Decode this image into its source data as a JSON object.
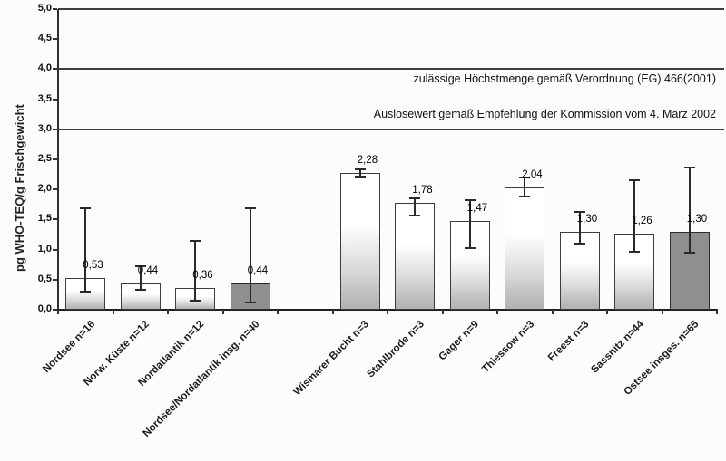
{
  "chart_data": {
    "type": "bar",
    "title": "",
    "xlabel": "",
    "ylabel": "pg WHO-TEQ/g Frischgewicht",
    "ylim": [
      0,
      5
    ],
    "ytick_step": 0.5,
    "ytick_labels": [
      "0,0",
      "0,5",
      "1,0",
      "1,5",
      "2,0",
      "2,5",
      "3,0",
      "3,5",
      "4,0",
      "4,5",
      "5,0"
    ],
    "grid": "horizontal reference lines at 3.0, 4.0 and 5.0 only; legend none",
    "total_slots": 12,
    "empty_slot": 4,
    "reference_lines": [
      {
        "value": 5.0,
        "label": ""
      },
      {
        "value": 4.0,
        "label": "zulässige Höchstmenge gemäß Verordnung (EG) 466(2001)"
      },
      {
        "value": 3.0,
        "label": "Auslösewert gemäß Empfehlung der Kommission vom 4. März 2002"
      }
    ],
    "bars": [
      {
        "slot": 0,
        "category": "Nordsee n=16",
        "value": 0.53,
        "label": "0,53",
        "err_low": 0.3,
        "err_high": 1.68,
        "dark": false
      },
      {
        "slot": 1,
        "category": "Norw. Küste n=12",
        "value": 0.44,
        "label": "0,44",
        "err_low": 0.33,
        "err_high": 0.72,
        "dark": false
      },
      {
        "slot": 2,
        "category": "Nordatlantik n=12",
        "value": 0.36,
        "label": "0,36",
        "err_low": 0.15,
        "err_high": 1.15,
        "dark": false
      },
      {
        "slot": 3,
        "category": "Nordsee/Nordatlantik insg. n=40",
        "value": 0.44,
        "label": "0,44",
        "err_low": 0.12,
        "err_high": 1.68,
        "dark": true
      },
      {
        "slot": 5,
        "category": "Wismarer Bucht n=3",
        "value": 2.28,
        "label": "2,28",
        "err_low": 2.22,
        "err_high": 2.34,
        "dark": false
      },
      {
        "slot": 6,
        "category": "Stahlbrode n=3",
        "value": 1.78,
        "label": "1,78",
        "err_low": 1.57,
        "err_high": 1.86,
        "dark": false
      },
      {
        "slot": 7,
        "category": "Gager n=9",
        "value": 1.47,
        "label": "1,47",
        "err_low": 1.03,
        "err_high": 1.83,
        "dark": false
      },
      {
        "slot": 8,
        "category": "Thiessow n=3",
        "value": 2.04,
        "label": "2,04",
        "err_low": 1.89,
        "err_high": 2.2,
        "dark": false
      },
      {
        "slot": 9,
        "category": "Freest n=3",
        "value": 1.3,
        "label": "1,30",
        "err_low": 1.1,
        "err_high": 1.63,
        "dark": false
      },
      {
        "slot": 10,
        "category": "Sassnitz n=44",
        "value": 1.26,
        "label": "1,26",
        "err_low": 0.97,
        "err_high": 2.16,
        "dark": false
      },
      {
        "slot": 11,
        "category": "Ostsee insges. n=65",
        "value": 1.3,
        "label": "1,30",
        "err_low": 0.95,
        "err_high": 2.36,
        "dark": true
      }
    ],
    "colors": {
      "background": "#fcfcfc",
      "bar_light_top": "#ffffff",
      "bar_light_bottom": "#b2b2b2",
      "bar_dark": "#8f8f8f",
      "bar_border": "#3d3d3d",
      "axis": "#2e2e2e",
      "reference_line": "#3f3f3f",
      "error_bar": "#2a2a2a",
      "text": "#111111"
    }
  }
}
